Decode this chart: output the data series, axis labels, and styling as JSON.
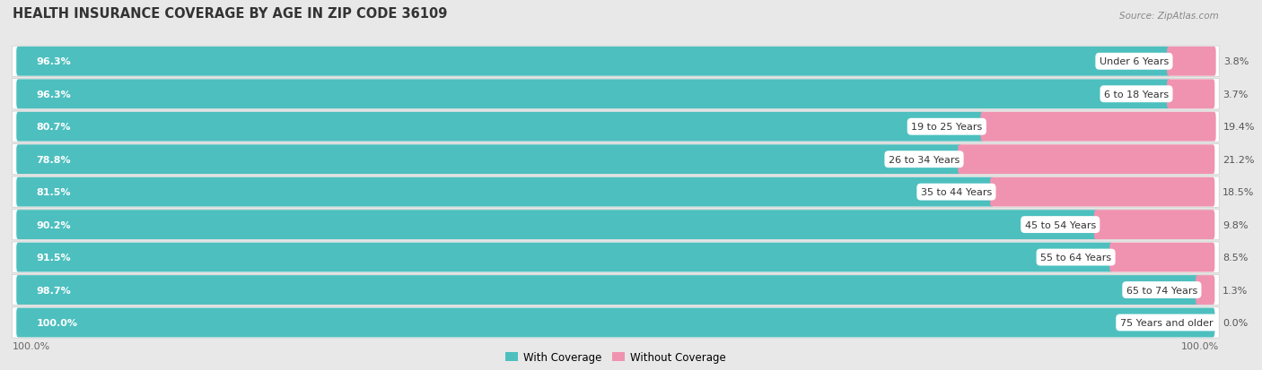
{
  "title": "HEALTH INSURANCE COVERAGE BY AGE IN ZIP CODE 36109",
  "source": "Source: ZipAtlas.com",
  "categories": [
    "Under 6 Years",
    "6 to 18 Years",
    "19 to 25 Years",
    "26 to 34 Years",
    "35 to 44 Years",
    "45 to 54 Years",
    "55 to 64 Years",
    "65 to 74 Years",
    "75 Years and older"
  ],
  "with_coverage": [
    96.3,
    96.3,
    80.7,
    78.8,
    81.5,
    90.2,
    91.5,
    98.7,
    100.0
  ],
  "without_coverage": [
    3.8,
    3.7,
    19.4,
    21.2,
    18.5,
    9.8,
    8.5,
    1.3,
    0.0
  ],
  "color_with": "#4DBFBF",
  "color_without": "#F093B0",
  "bg_color": "#e8e8e8",
  "row_bg": "#f5f5f5",
  "row_bg_alt": "#ebebeb",
  "title_fontsize": 10.5,
  "label_fontsize": 8.0,
  "legend_fontsize": 8.5,
  "source_fontsize": 7.5,
  "axis_label_fontsize": 8.0
}
